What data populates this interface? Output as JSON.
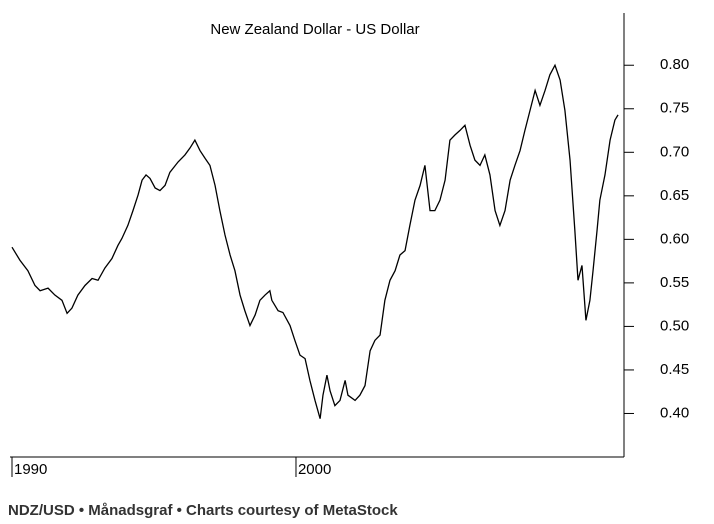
{
  "chart_data": {
    "type": "line",
    "title": "New Zealand Dollar - US Dollar",
    "caption": "NDZ/USD • Månadsgraf • Charts courtesy of MetaStock",
    "x": [
      1990.0,
      1990.28,
      1990.56,
      1990.81,
      1990.99,
      1991.27,
      1991.51,
      1991.76,
      1991.94,
      1992.11,
      1992.32,
      1992.57,
      1992.82,
      1993.03,
      1993.27,
      1993.52,
      1993.73,
      1993.87,
      1994.08,
      1994.26,
      1994.44,
      1994.58,
      1994.72,
      1994.86,
      1995.04,
      1995.21,
      1995.39,
      1995.56,
      1995.85,
      1996.09,
      1996.27,
      1996.44,
      1996.62,
      1996.8,
      1996.97,
      1997.15,
      1997.32,
      1997.5,
      1997.68,
      1997.85,
      1998.03,
      1998.2,
      1998.38,
      1998.56,
      1998.73,
      1998.91,
      1999.08,
      1999.15,
      1999.37,
      1999.54,
      1999.79,
      1999.96,
      2000.14,
      2000.32,
      2000.49,
      2000.67,
      2000.85,
      2000.95,
      2001.09,
      2001.2,
      2001.37,
      2001.55,
      2001.73,
      2001.83,
      2002.08,
      2002.25,
      2002.43,
      2002.61,
      2002.78,
      2002.96,
      2003.13,
      2003.31,
      2003.49,
      2003.66,
      2003.84,
      2004.01,
      2004.19,
      2004.37,
      2004.54,
      2004.72,
      2004.89,
      2005.07,
      2005.25,
      2005.42,
      2005.6,
      2005.77,
      2005.95,
      2006.13,
      2006.3,
      2006.48,
      2006.65,
      2006.83,
      2007.01,
      2007.18,
      2007.36,
      2007.54,
      2007.71,
      2007.89,
      2008.06,
      2008.24,
      2008.42,
      2008.59,
      2008.77,
      2008.94,
      2009.12,
      2009.3,
      2009.47,
      2009.65,
      2009.82,
      2009.93,
      2010.07,
      2010.21,
      2010.35,
      2010.46,
      2010.6,
      2010.7,
      2010.88,
      2011.06,
      2011.23,
      2011.34
    ],
    "series": [
      {
        "name": "NZD/USD",
        "color": "#000000",
        "values": [
          0.591,
          0.576,
          0.564,
          0.547,
          0.541,
          0.544,
          0.536,
          0.53,
          0.515,
          0.521,
          0.536,
          0.547,
          0.555,
          0.553,
          0.567,
          0.578,
          0.593,
          0.601,
          0.616,
          0.633,
          0.651,
          0.668,
          0.674,
          0.67,
          0.659,
          0.656,
          0.662,
          0.677,
          0.689,
          0.697,
          0.705,
          0.714,
          0.702,
          0.693,
          0.685,
          0.662,
          0.633,
          0.605,
          0.582,
          0.564,
          0.536,
          0.518,
          0.501,
          0.513,
          0.53,
          0.536,
          0.541,
          0.53,
          0.518,
          0.516,
          0.501,
          0.484,
          0.467,
          0.463,
          0.438,
          0.415,
          0.394,
          0.421,
          0.444,
          0.426,
          0.409,
          0.415,
          0.438,
          0.421,
          0.415,
          0.421,
          0.432,
          0.472,
          0.484,
          0.49,
          0.53,
          0.553,
          0.564,
          0.582,
          0.587,
          0.616,
          0.645,
          0.662,
          0.685,
          0.633,
          0.633,
          0.645,
          0.668,
          0.714,
          0.72,
          0.725,
          0.731,
          0.708,
          0.691,
          0.685,
          0.697,
          0.674,
          0.633,
          0.616,
          0.633,
          0.668,
          0.685,
          0.702,
          0.725,
          0.748,
          0.771,
          0.754,
          0.771,
          0.789,
          0.8,
          0.783,
          0.748,
          0.691,
          0.61,
          0.553,
          0.57,
          0.507,
          0.53,
          0.564,
          0.61,
          0.645,
          0.674,
          0.714,
          0.737,
          0.743
        ]
      }
    ],
    "xlim": [
      1989.93,
      2011.55
    ],
    "xticks": [
      1990,
      2000
    ],
    "ylim": [
      0.35,
      0.86
    ],
    "yticks": [
      {
        "value": 0.4,
        "label": "0.40"
      },
      {
        "value": 0.45,
        "label": "0.45"
      },
      {
        "value": 0.5,
        "label": "0.50"
      },
      {
        "value": 0.55,
        "label": "0.55"
      },
      {
        "value": 0.6,
        "label": "0.60"
      },
      {
        "value": 0.65,
        "label": "0.65"
      },
      {
        "value": 0.7,
        "label": "0.70"
      },
      {
        "value": 0.75,
        "label": "0.75"
      },
      {
        "value": 0.8,
        "label": "0.80"
      }
    ],
    "yaxis_side": "right"
  }
}
